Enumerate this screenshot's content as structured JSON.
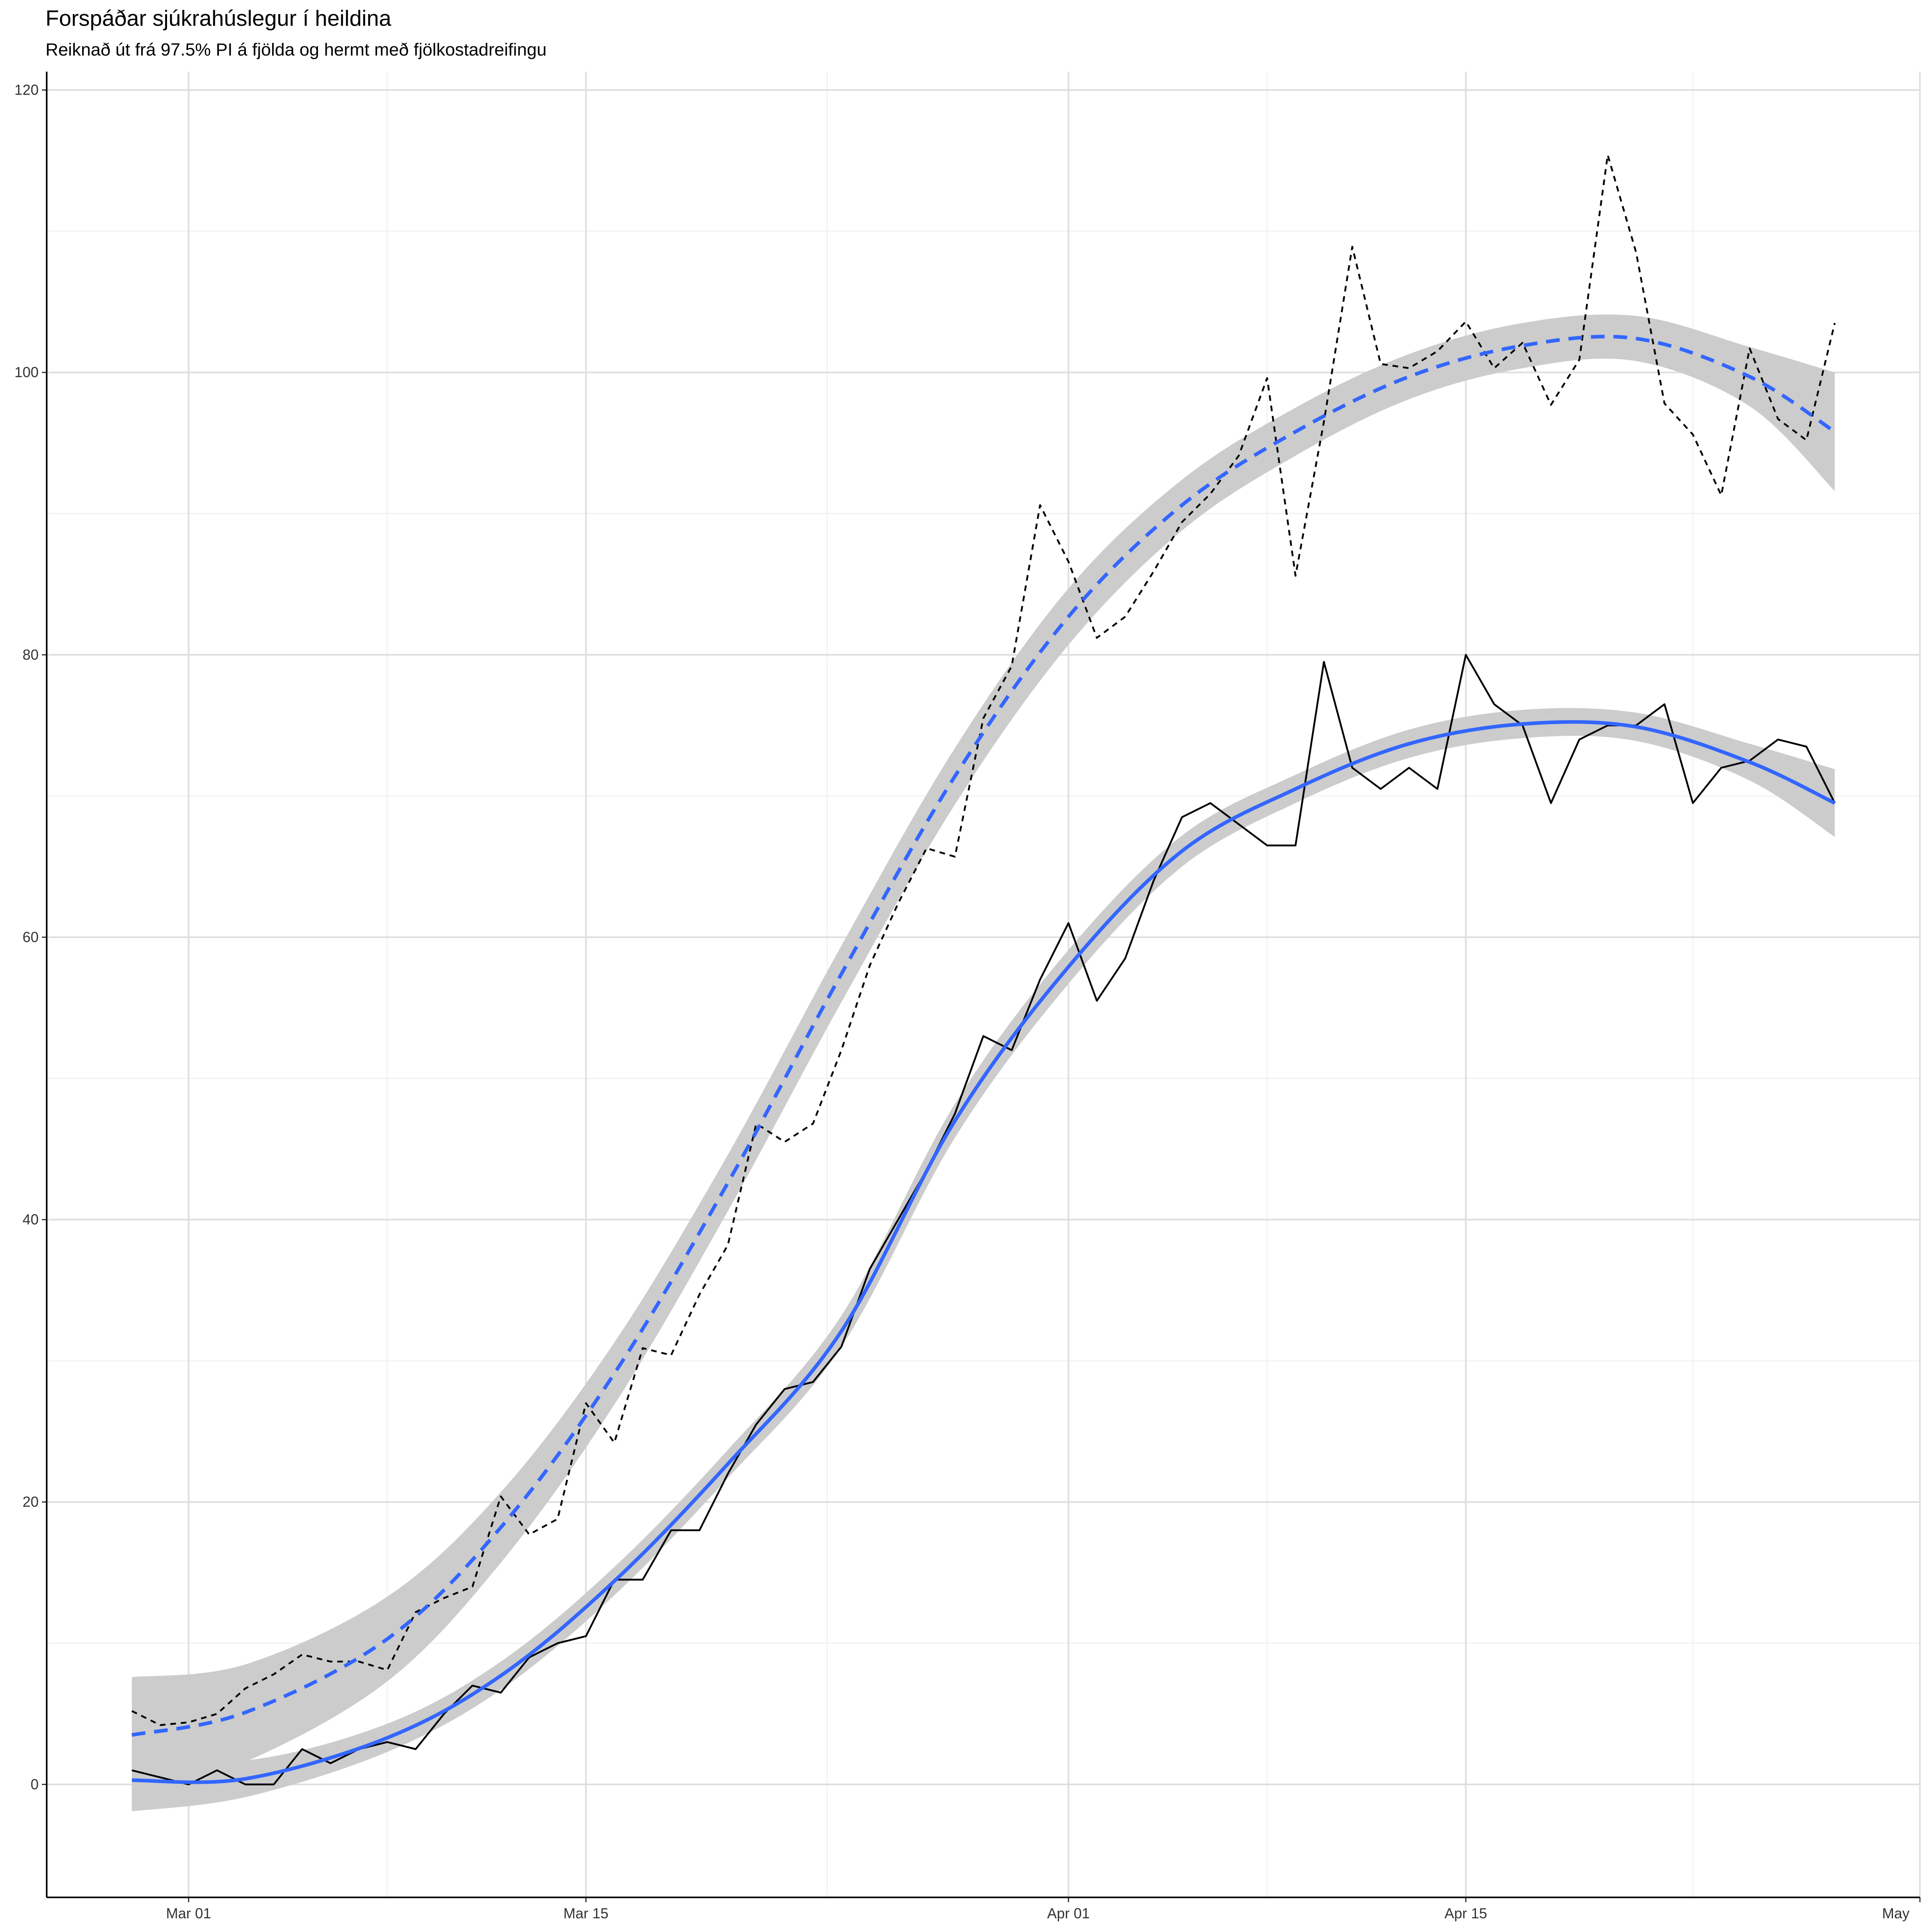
{
  "chart_data": {
    "type": "line",
    "title": "Forspáðar sjúkrahúslegur í heildina",
    "subtitle": "Reiknað út frá 97.5% PI á fjölda og hermt með fjölkostadreifingu",
    "x": [
      "Feb 28",
      "Feb 29",
      "Mar 01",
      "Mar 02",
      "Mar 03",
      "Mar 04",
      "Mar 05",
      "Mar 06",
      "Mar 07",
      "Mar 08",
      "Mar 09",
      "Mar 10",
      "Mar 11",
      "Mar 12",
      "Mar 13",
      "Mar 14",
      "Mar 15",
      "Mar 16",
      "Mar 17",
      "Mar 18",
      "Mar 19",
      "Mar 20",
      "Mar 21",
      "Mar 22",
      "Mar 23",
      "Mar 24",
      "Mar 25",
      "Mar 26",
      "Mar 27",
      "Mar 28",
      "Mar 29",
      "Mar 30",
      "Mar 31",
      "Apr 01",
      "Apr 02",
      "Apr 03",
      "Apr 04",
      "Apr 05",
      "Apr 06",
      "Apr 07",
      "Apr 08",
      "Apr 09",
      "Apr 10",
      "Apr 11",
      "Apr 12",
      "Apr 13",
      "Apr 14",
      "Apr 15",
      "Apr 16",
      "Apr 17",
      "Apr 18",
      "Apr 19",
      "Apr 20",
      "Apr 21",
      "Apr 22",
      "Apr 23",
      "Apr 24",
      "Apr 25",
      "Apr 26",
      "Apr 27",
      "Apr 28"
    ],
    "series": [
      {
        "color": "#000000",
        "dashed": false,
        "values": [
          1,
          0.5,
          0,
          1,
          0,
          0,
          2.5,
          1.5,
          2.5,
          3,
          2.5,
          5,
          7,
          6.5,
          9,
          10,
          10.5,
          14.5,
          14.5,
          18,
          18,
          22,
          25.5,
          28,
          28.5,
          31,
          36.5,
          40,
          43.5,
          47.5,
          53,
          52,
          57,
          61,
          55.5,
          58.5,
          64,
          68.5,
          69.5,
          68,
          66.5,
          66.5,
          79.5,
          72,
          70.5,
          72,
          70.5,
          80,
          76.5,
          75,
          69.5,
          74,
          75,
          75,
          76.5,
          69.5,
          72,
          72.5,
          74,
          73.5,
          69.5
        ]
      },
      {
        "color": "#000000",
        "dashed": true,
        "values": [
          5.2,
          4.2,
          4.4,
          5,
          6.8,
          7.8,
          9.2,
          8.7,
          8.7,
          8.1,
          12.2,
          13.2,
          14,
          20.4,
          17.7,
          18.8,
          27,
          24.2,
          30.9,
          30.4,
          34.7,
          38.2,
          46.8,
          45.5,
          46.8,
          52,
          58,
          62.4,
          66.3,
          65.7,
          75.5,
          79.2,
          90.6,
          86.6,
          81.2,
          82.7,
          85.9,
          89.4,
          91.4,
          94.1,
          99.6,
          85.6,
          96.5,
          108.9,
          100.6,
          100.3,
          101.5,
          103.6,
          100.3,
          102.1,
          97.7,
          100.9,
          115.4,
          108.5,
          97.8,
          95.6,
          91.3,
          101.7,
          96.7,
          95.2,
          103.5
        ]
      }
    ],
    "smooth": [
      {
        "color": "#3366FF",
        "band_color": "#cccccc",
        "dashed": false,
        "x": [
          "Feb 28",
          "Mar 03",
          "Mar 08",
          "Mar 12",
          "Mar 16",
          "Mar 20",
          "Mar 24",
          "Mar 28",
          "Apr 01",
          "Apr 05",
          "Apr 09",
          "Apr 13",
          "Apr 17",
          "Apr 21",
          "Apr 25",
          "Apr 28"
        ],
        "values": [
          0.3,
          0.4,
          3.3,
          7.7,
          14.4,
          22.7,
          32.1,
          47,
          57.9,
          66.1,
          70.5,
          73.7,
          75.1,
          74.9,
          72.4,
          69.5
        ],
        "lower": [
          -1.9,
          -0.9,
          2.3,
          6.7,
          13.4,
          21.7,
          31,
          45.8,
          56.7,
          65,
          69.5,
          72.7,
          74.1,
          73.9,
          71.1,
          67.1
        ],
        "upper": [
          2.5,
          1.7,
          4.3,
          8.7,
          15.4,
          23.7,
          33.2,
          48.2,
          59.1,
          67.2,
          71.5,
          74.7,
          76.1,
          75.9,
          73.7,
          71.9
        ]
      },
      {
        "color": "#3366FF",
        "band_color": "#cccccc",
        "dashed": true,
        "x": [
          "Feb 28",
          "Mar 03",
          "Mar 08",
          "Mar 12",
          "Mar 16",
          "Mar 20",
          "Mar 24",
          "Mar 28",
          "Apr 01",
          "Apr 05",
          "Apr 09",
          "Apr 13",
          "Apr 17",
          "Apr 21",
          "Apr 25",
          "Apr 28"
        ],
        "values": [
          3.5,
          5.1,
          10.3,
          18.2,
          29.1,
          42.6,
          57.4,
          71.4,
          82.7,
          90.6,
          95.8,
          99.7,
          101.9,
          102.4,
          99.7,
          95.8
        ],
        "lower": [
          -0.6,
          1.6,
          7.3,
          15.7,
          26.9,
          40.6,
          55.4,
          69.4,
          80.7,
          88.8,
          94.1,
          98.1,
          100.3,
          100.8,
          97.6,
          91.6
        ],
        "upper": [
          7.6,
          8.5,
          13.3,
          20.7,
          31.3,
          44.6,
          59.4,
          73.4,
          84.7,
          92.4,
          97.5,
          101.3,
          103.5,
          104,
          101.8,
          100
        ]
      }
    ],
    "xlim": [
      "Feb 25",
      "May 01"
    ],
    "xticks": [
      "Mar 01",
      "Mar 15",
      "Apr 01",
      "Apr 15",
      {
        "value": "May 01",
        "label": "May"
      }
    ],
    "ylim": [
      -8,
      121.3
    ],
    "yticks": [
      0,
      20,
      40,
      60,
      80,
      100,
      120
    ],
    "grid": true,
    "minor_grid": true
  }
}
